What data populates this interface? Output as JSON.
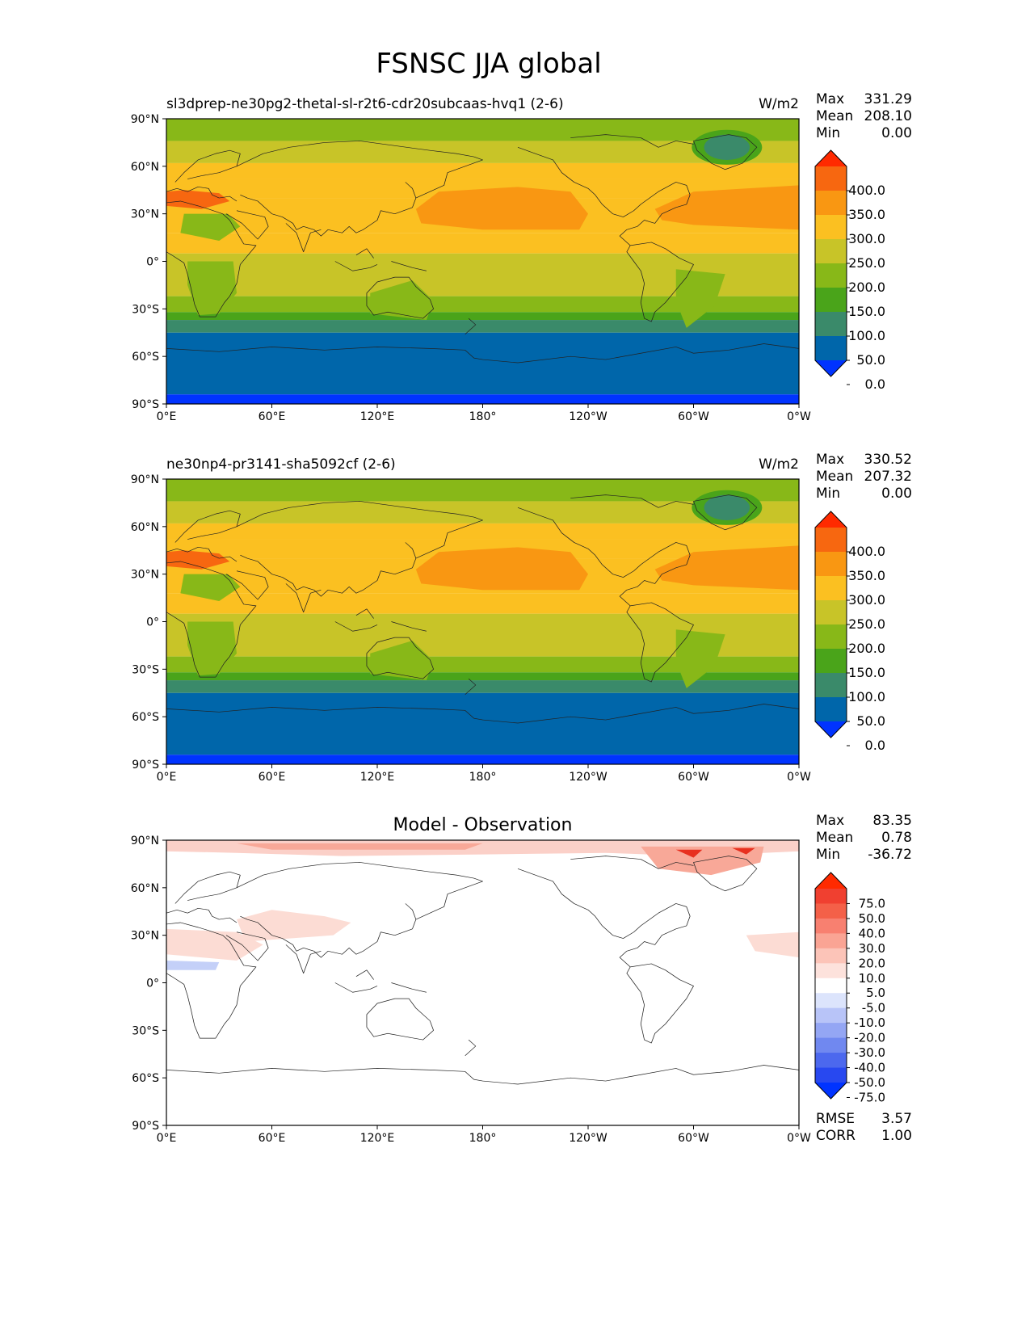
{
  "figure": {
    "title": "FSNSC JJA global"
  },
  "axis_ticks": {
    "x": [
      "0°E",
      "60°E",
      "120°E",
      "180°",
      "120°W",
      "60°W",
      "0°W"
    ],
    "y": [
      "90°N",
      "60°N",
      "30°N",
      "0°",
      "30°S",
      "60°S",
      "90°S"
    ]
  },
  "colors": {
    "blue": "#0033ff",
    "steel_blue": "#0066aa",
    "teal": "#3a8a6a",
    "dark_green": "#4aa41a",
    "green": "#88b818",
    "yellow_green": "#c8c428",
    "yellow": "#fbc021",
    "orange": "#f99712",
    "dark_orange": "#f76710",
    "red": "#ff2a00"
  },
  "panels": [
    {
      "title_left": "sl3dprep-ne30pg2-thetal-sl-r2t6-cdr20subcaas-hvq1 (2-6)",
      "title_center": "",
      "units": "W/m2",
      "stats": {
        "max_label": "Max",
        "max": "331.29",
        "mean_label": "Mean",
        "mean": "208.10",
        "min_label": "Min",
        "min": "0.00"
      },
      "colorbar_levels": [
        "400.0",
        "350.0",
        "300.0",
        "250.0",
        "200.0",
        "150.0",
        "100.0",
        "50.0",
        "0.0"
      ]
    },
    {
      "title_left": "ne30np4-pr3141-sha5092cf (2-6)",
      "title_center": "",
      "units": "W/m2",
      "stats": {
        "max_label": "Max",
        "max": "330.52",
        "mean_label": "Mean",
        "mean": "207.32",
        "min_label": "Min",
        "min": "0.00"
      },
      "colorbar_levels": [
        "400.0",
        "350.0",
        "300.0",
        "250.0",
        "200.0",
        "150.0",
        "100.0",
        "50.0",
        "0.0"
      ]
    },
    {
      "title_left": "",
      "title_center": "Model - Observation",
      "units": "",
      "stats": {
        "max_label": "Max",
        "max": "83.35",
        "mean_label": "Mean",
        "mean": "0.78",
        "min_label": "Min",
        "min": "-36.72"
      },
      "colorbar_levels": [
        "75.0",
        "50.0",
        "40.0",
        "30.0",
        "20.0",
        "10.0",
        "5.0",
        "-5.0",
        "-10.0",
        "-20.0",
        "-30.0",
        "-40.0",
        "-50.0",
        "-75.0"
      ],
      "extra": {
        "rmse_label": "RMSE",
        "rmse": "3.57",
        "corr_label": "CORR",
        "corr": "1.00"
      }
    }
  ]
}
